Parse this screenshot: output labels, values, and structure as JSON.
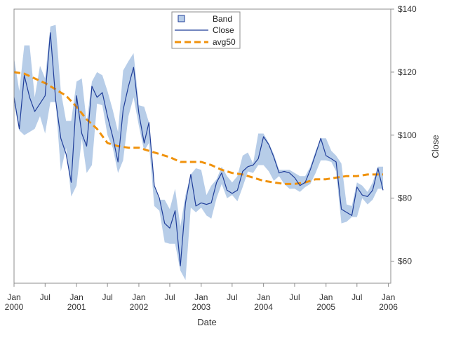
{
  "chart_data": {
    "type": "line",
    "xlabel": "Date",
    "ylabel": "Close",
    "x_domain": [
      "2000-01-01",
      "2006-01-15"
    ],
    "ylim": [
      53,
      140
    ],
    "y_ticks": [
      60,
      80,
      100,
      120,
      140
    ],
    "y_tick_labels": [
      "$60",
      "$80",
      "$100",
      "$120",
      "$140"
    ],
    "x_ticks": [
      {
        "date": "2000-01-01",
        "month": "Jan",
        "year": "2000"
      },
      {
        "date": "2000-07-01",
        "month": "Jul",
        "year": ""
      },
      {
        "date": "2001-01-01",
        "month": "Jan",
        "year": "2001"
      },
      {
        "date": "2001-07-01",
        "month": "Jul",
        "year": ""
      },
      {
        "date": "2002-01-01",
        "month": "Jan",
        "year": "2002"
      },
      {
        "date": "2002-07-01",
        "month": "Jul",
        "year": ""
      },
      {
        "date": "2003-01-01",
        "month": "Jan",
        "year": "2003"
      },
      {
        "date": "2003-07-01",
        "month": "Jul",
        "year": ""
      },
      {
        "date": "2004-01-01",
        "month": "Jan",
        "year": "2004"
      },
      {
        "date": "2004-07-01",
        "month": "Jul",
        "year": ""
      },
      {
        "date": "2005-01-01",
        "month": "Jan",
        "year": "2005"
      },
      {
        "date": "2005-07-01",
        "month": "Jul",
        "year": ""
      },
      {
        "date": "2006-01-01",
        "month": "Jan",
        "year": "2006"
      }
    ],
    "legend": {
      "position": "top-center",
      "entries": [
        "Band",
        "Close",
        "avg50"
      ]
    },
    "colors": {
      "band": "#b7cde8",
      "close": "#1f3d99",
      "avg50": "#f0920c",
      "frame": "#8c8c8c"
    },
    "series": [
      {
        "name": "Band",
        "type": "band",
        "x": [
          "2000-01-01",
          "2000-02-01",
          "2000-03-01",
          "2000-04-01",
          "2000-05-01",
          "2000-06-01",
          "2000-07-01",
          "2000-08-01",
          "2000-09-01",
          "2000-10-01",
          "2000-11-01",
          "2000-12-01",
          "2001-01-01",
          "2001-02-01",
          "2001-03-01",
          "2001-04-01",
          "2001-05-01",
          "2001-06-01",
          "2001-07-01",
          "2001-08-01",
          "2001-09-01",
          "2001-10-01",
          "2001-11-01",
          "2001-12-01",
          "2002-01-01",
          "2002-02-01",
          "2002-03-01",
          "2002-04-01",
          "2002-05-01",
          "2002-06-01",
          "2002-07-01",
          "2002-08-01",
          "2002-09-01",
          "2002-10-01",
          "2002-11-01",
          "2002-12-01",
          "2003-01-01",
          "2003-02-01",
          "2003-03-01",
          "2003-04-01",
          "2003-05-01",
          "2003-06-01",
          "2003-07-01",
          "2003-08-01",
          "2003-09-01",
          "2003-10-01",
          "2003-11-01",
          "2003-12-01",
          "2004-01-01",
          "2004-02-01",
          "2004-03-01",
          "2004-04-01",
          "2004-05-01",
          "2004-06-01",
          "2004-07-01",
          "2004-08-01",
          "2004-09-01",
          "2004-10-01",
          "2004-11-01",
          "2004-12-01",
          "2005-01-01",
          "2005-02-01",
          "2005-03-01",
          "2005-04-01",
          "2005-05-01",
          "2005-06-01",
          "2005-07-01",
          "2005-08-01",
          "2005-09-01",
          "2005-10-01",
          "2005-11-01",
          "2005-12-01"
        ],
        "upper": [
          124.5,
          114,
          128.5,
          128.5,
          112,
          122,
          118,
          134.5,
          135,
          114,
          104.5,
          104.5,
          117,
          118,
          104,
          117,
          120,
          119,
          114,
          108,
          101,
          120.5,
          123.5,
          126,
          109.5,
          109,
          104,
          84,
          79.5,
          79.5,
          76.5,
          83,
          71,
          81,
          87.5,
          89.5,
          89,
          81,
          84,
          86,
          90,
          87,
          85,
          87,
          93.5,
          94.5,
          91,
          100.5,
          100.5,
          97.5,
          94,
          89,
          89,
          89,
          88,
          87,
          87,
          90,
          95,
          99,
          99,
          95,
          93.5,
          91,
          78,
          77.5,
          85,
          84,
          82,
          85,
          90,
          90
        ],
        "lower": [
          110,
          101.5,
          100,
          101,
          102,
          106,
          100.5,
          110.5,
          110.5,
          88.5,
          96,
          80.5,
          84,
          99,
          88,
          90.5,
          110,
          109.5,
          100,
          96,
          88,
          92,
          106,
          112,
          103,
          95,
          97.5,
          77.5,
          76,
          66,
          65.5,
          65.5,
          57,
          54,
          77,
          75.5,
          77,
          74.5,
          73.5,
          80,
          84.5,
          80,
          81,
          79,
          83.5,
          88.5,
          88,
          90.5,
          90.5,
          88.5,
          85.5,
          87,
          84.5,
          83,
          83,
          82,
          83.5,
          84.5,
          88,
          92,
          92,
          91.5,
          88.5,
          72,
          72.5,
          74,
          74,
          80,
          78,
          79.5,
          83,
          83
        ]
      },
      {
        "name": "Close",
        "type": "line",
        "x": [
          "2000-01-01",
          "2000-02-01",
          "2000-03-01",
          "2000-04-01",
          "2000-05-01",
          "2000-06-01",
          "2000-07-01",
          "2000-08-01",
          "2000-09-01",
          "2000-10-01",
          "2000-11-01",
          "2000-12-01",
          "2001-01-01",
          "2001-02-01",
          "2001-03-01",
          "2001-04-01",
          "2001-05-01",
          "2001-06-01",
          "2001-07-01",
          "2001-08-01",
          "2001-09-01",
          "2001-10-01",
          "2001-11-01",
          "2001-12-01",
          "2002-01-01",
          "2002-02-01",
          "2002-03-01",
          "2002-04-01",
          "2002-05-01",
          "2002-06-01",
          "2002-07-01",
          "2002-08-01",
          "2002-09-01",
          "2002-10-01",
          "2002-11-01",
          "2002-12-01",
          "2003-01-01",
          "2003-02-01",
          "2003-03-01",
          "2003-04-01",
          "2003-05-01",
          "2003-06-01",
          "2003-07-01",
          "2003-08-01",
          "2003-09-01",
          "2003-10-01",
          "2003-11-01",
          "2003-12-01",
          "2004-01-01",
          "2004-02-01",
          "2004-03-01",
          "2004-04-01",
          "2004-05-01",
          "2004-06-01",
          "2004-07-01",
          "2004-08-01",
          "2004-09-01",
          "2004-10-01",
          "2004-11-01",
          "2004-12-01",
          "2005-01-01",
          "2005-02-01",
          "2005-03-01",
          "2005-04-01",
          "2005-05-01",
          "2005-06-01",
          "2005-07-01",
          "2005-08-01",
          "2005-09-01",
          "2005-10-01",
          "2005-11-01",
          "2005-12-01"
        ],
        "values": [
          112,
          102,
          119,
          112,
          107.5,
          110,
          112.5,
          132.5,
          111,
          99,
          94,
          85,
          112.5,
          100.5,
          96.5,
          115.5,
          112,
          113.5,
          106,
          99.5,
          91.5,
          108,
          115.5,
          121.5,
          107,
          97.5,
          104,
          84,
          80,
          72,
          70.5,
          76,
          58.5,
          78.5,
          87.5,
          77.5,
          78.5,
          78,
          78.5,
          85,
          88,
          82.5,
          81.5,
          82.5,
          88.5,
          90,
          90.5,
          92.5,
          99.5,
          97,
          93,
          88,
          88.5,
          88,
          86.5,
          84,
          85,
          89,
          94,
          99,
          93.5,
          92.5,
          91.5,
          76.5,
          75.5,
          74.5,
          83.5,
          81,
          80.5,
          82.5,
          89.5,
          82.5
        ]
      },
      {
        "name": "avg50",
        "type": "line",
        "x": [
          "2000-01-01",
          "2000-03-01",
          "2000-05-01",
          "2000-07-01",
          "2000-09-01",
          "2000-11-01",
          "2001-01-01",
          "2001-03-01",
          "2001-05-01",
          "2001-07-01",
          "2001-09-01",
          "2001-11-01",
          "2002-01-01",
          "2002-03-01",
          "2002-05-01",
          "2002-07-01",
          "2002-09-01",
          "2002-11-01",
          "2003-01-01",
          "2003-03-01",
          "2003-05-01",
          "2003-07-01",
          "2003-09-01",
          "2003-11-01",
          "2004-01-01",
          "2004-03-01",
          "2004-05-01",
          "2004-07-01",
          "2004-09-01",
          "2004-11-01",
          "2005-01-01",
          "2005-03-01",
          "2005-05-01",
          "2005-07-01",
          "2005-09-01",
          "2005-11-01",
          "2005-12-01"
        ],
        "values": [
          120,
          119.5,
          118,
          116.5,
          114.5,
          112.5,
          109,
          105,
          102,
          97.5,
          96.5,
          96,
          96,
          95,
          94,
          93,
          91.5,
          91.5,
          91.5,
          90.5,
          89,
          88,
          87.5,
          86.5,
          85.5,
          85,
          84.5,
          84.5,
          85,
          86,
          86,
          86.5,
          87,
          87,
          87.5,
          87.5,
          87.5
        ]
      }
    ]
  }
}
